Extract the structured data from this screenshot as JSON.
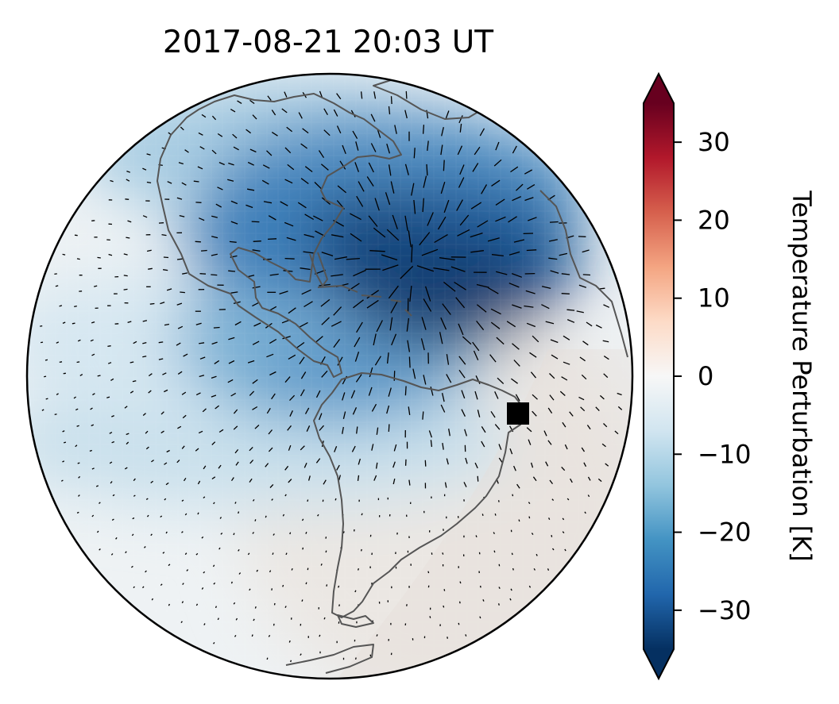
{
  "title": "2017-08-21  20:03 UT",
  "colorbar": {
    "label": "Temperature Perturbation [K]",
    "vmin": -35,
    "vmax": 35,
    "ticks": [
      30,
      20,
      10,
      0,
      -10,
      -20,
      -30
    ],
    "tick_labels": [
      "30",
      "20",
      "10",
      "0",
      "−10",
      "−20",
      "−30"
    ],
    "colormap": "RdBu_r",
    "extend": "both",
    "colors": [
      "#053061",
      "#2166ac",
      "#4393c3",
      "#92c5de",
      "#d1e5f0",
      "#f7f7f7",
      "#fddbc7",
      "#f4a582",
      "#d6604d",
      "#b2182b",
      "#67001f"
    ]
  },
  "map": {
    "projection": "orthographic",
    "center_lon": -60,
    "center_lat": 10,
    "coastline_color": "#555555",
    "marker": {
      "symbol": "black-square",
      "lon": -35.3,
      "lat": -7.4,
      "color": "#000000"
    }
  }
}
